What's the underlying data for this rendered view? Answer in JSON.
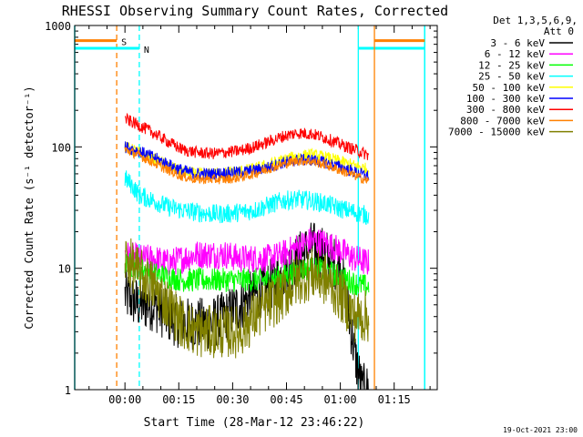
{
  "chart_data": {
    "type": "line",
    "title": "RHESSI Observing Summary Count Rates, Corrected",
    "xlabel": "Start Time (28-Mar-12 23:46:22)",
    "ylabel": "Corrected Count Rate (s⁻¹ detector⁻¹)",
    "yscale": "log",
    "ylim": [
      1,
      1000
    ],
    "xlim_min": [
      -14,
      87
    ],
    "x_ticks": [
      "00:00",
      "00:15",
      "00:30",
      "00:45",
      "01:00",
      "01:15"
    ],
    "y_ticks": [
      "1",
      "10",
      "100",
      "1000"
    ],
    "legend_header": [
      "Det 1,3,5,6,9,",
      "Att 0"
    ],
    "series": [
      {
        "name": "3 - 6 keV",
        "color": "#000000",
        "x": [
          0,
          4,
          8,
          12,
          16,
          20,
          24,
          28,
          32,
          36,
          40,
          44,
          48,
          52,
          56,
          60,
          62,
          64,
          66,
          68
        ],
        "y": [
          6,
          5,
          5,
          4,
          3.5,
          3.5,
          3.5,
          4,
          5,
          6,
          7,
          9,
          12,
          15,
          13,
          10,
          5,
          2,
          1,
          1
        ]
      },
      {
        "name": "6 - 12 keV",
        "color": "#ff00ff",
        "x": [
          0,
          4,
          8,
          12,
          16,
          20,
          24,
          28,
          32,
          36,
          40,
          44,
          48,
          52,
          56,
          60,
          64,
          68
        ],
        "y": [
          13,
          12,
          12,
          11,
          12,
          13,
          13,
          13,
          12,
          12,
          12,
          13,
          15,
          17,
          16,
          14,
          12,
          11
        ]
      },
      {
        "name": "12 - 25 keV",
        "color": "#00ff00",
        "x": [
          0,
          4,
          8,
          12,
          16,
          20,
          24,
          28,
          32,
          36,
          40,
          44,
          48,
          52,
          56,
          60,
          64,
          68
        ],
        "y": [
          11,
          10,
          9,
          8.5,
          8,
          8,
          8,
          8,
          8,
          8,
          8,
          8.5,
          9.5,
          10,
          9.5,
          8.5,
          7.5,
          7
        ]
      },
      {
        "name": "25 - 50 keV",
        "color": "#00ffff",
        "x": [
          0,
          2,
          4,
          8,
          12,
          16,
          20,
          24,
          28,
          32,
          36,
          40,
          44,
          48,
          52,
          56,
          60,
          64,
          68
        ],
        "y": [
          55,
          48,
          40,
          36,
          32,
          30,
          29,
          28,
          28,
          29,
          30,
          33,
          36,
          37,
          36,
          34,
          31,
          29,
          27
        ]
      },
      {
        "name": "50 - 100 keV",
        "color": "#ffff00",
        "x": [
          0,
          4,
          8,
          12,
          16,
          20,
          24,
          28,
          32,
          36,
          40,
          44,
          48,
          52,
          56,
          60,
          64,
          68
        ],
        "y": [
          100,
          90,
          80,
          70,
          62,
          60,
          60,
          61,
          63,
          66,
          71,
          78,
          84,
          86,
          82,
          76,
          70,
          65
        ]
      },
      {
        "name": "100 - 300 keV",
        "color": "#0000ff",
        "x": [
          0,
          4,
          8,
          12,
          16,
          20,
          24,
          28,
          32,
          36,
          40,
          44,
          48,
          52,
          56,
          60,
          64,
          68
        ],
        "y": [
          100,
          92,
          82,
          72,
          64,
          60,
          60,
          61,
          62,
          64,
          68,
          74,
          78,
          78,
          74,
          68,
          62,
          57
        ]
      },
      {
        "name": "300 - 800 keV",
        "color": "#ff0000",
        "x": [
          0,
          4,
          8,
          12,
          16,
          20,
          24,
          28,
          32,
          36,
          40,
          44,
          48,
          52,
          56,
          60,
          64,
          68
        ],
        "y": [
          170,
          150,
          130,
          110,
          95,
          90,
          88,
          90,
          93,
          100,
          110,
          122,
          130,
          128,
          118,
          105,
          95,
          85
        ]
      },
      {
        "name": "800 - 7000 keV",
        "color": "#ff8000",
        "x": [
          0,
          4,
          8,
          12,
          16,
          20,
          24,
          28,
          32,
          36,
          40,
          44,
          48,
          52,
          56,
          60,
          64,
          68
        ],
        "y": [
          95,
          85,
          74,
          64,
          57,
          54,
          54,
          54,
          56,
          60,
          66,
          72,
          77,
          76,
          71,
          64,
          58,
          52
        ]
      },
      {
        "name": "7000 - 15000 keV",
        "color": "#808000",
        "x": [
          0,
          4,
          8,
          12,
          16,
          20,
          24,
          28,
          32,
          36,
          40,
          44,
          48,
          52,
          56,
          60,
          64,
          68
        ],
        "y": [
          12,
          9,
          7,
          5,
          3.5,
          3,
          3,
          3,
          3,
          4,
          5,
          6,
          8,
          9,
          8,
          6,
          4,
          4
        ]
      }
    ],
    "annotations": [
      {
        "label": "S",
        "color": "#ff8000",
        "x": -2.3,
        "bar_y": 750,
        "bar_start": -14,
        "bar_end": -2.3
      },
      {
        "label": "N",
        "color": "#00ffff",
        "x": 4,
        "bar_y": 650,
        "bar_start": -14,
        "bar_end": 4
      },
      {
        "label": "",
        "color": "#00ffff",
        "x": 65,
        "bar_y": 650,
        "bar_start": 65,
        "bar_end": 83.5
      },
      {
        "label": "",
        "color": "#ff8000",
        "x": 69.5,
        "bar_y": 750,
        "bar_start": 69.5,
        "bar_end": 83.5
      }
    ],
    "segment_bounds": [
      {
        "x": -14,
        "color": "#00ffff"
      },
      {
        "x": 83.5,
        "color": "#00ffff"
      }
    ],
    "footer_date": "19-Oct-2021 23:00"
  }
}
